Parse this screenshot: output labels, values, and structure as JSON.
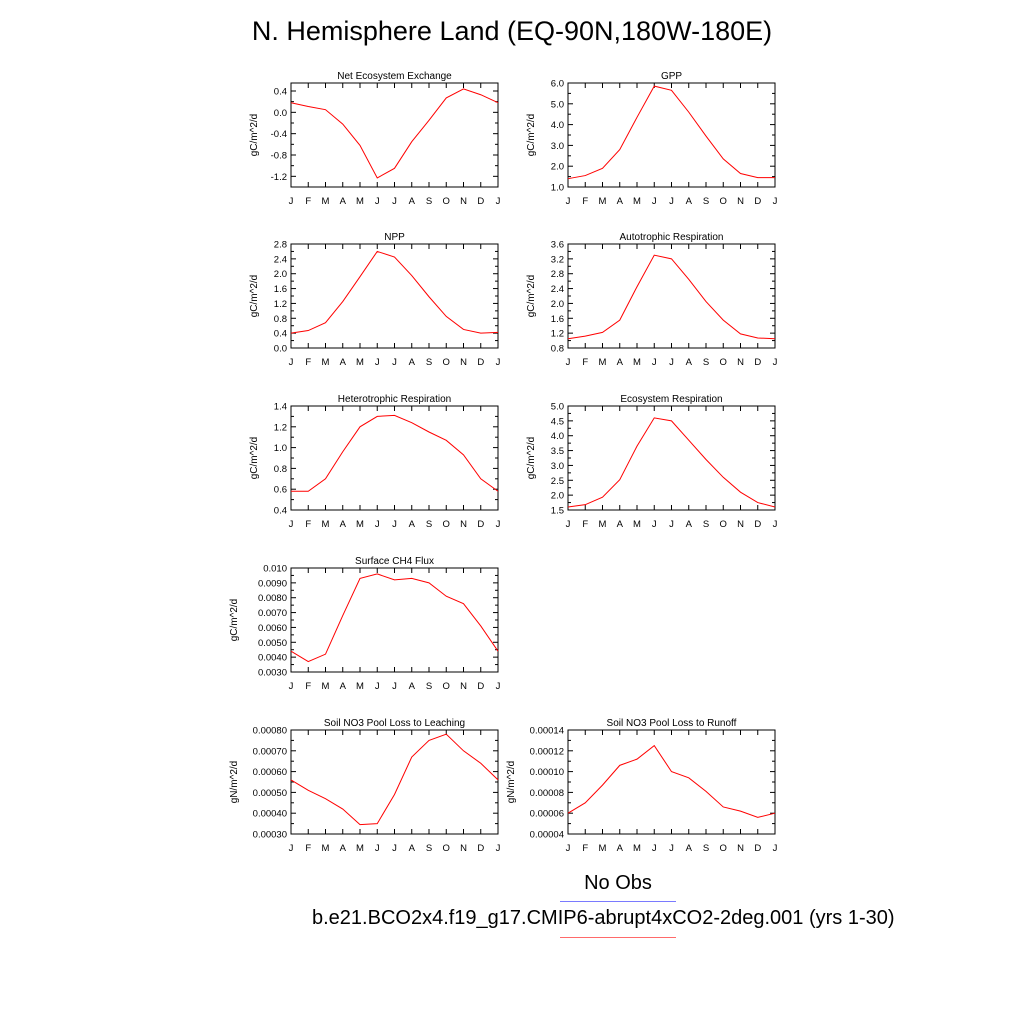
{
  "title": "N. Hemisphere Land (EQ-90N,180W-180E)",
  "legend": {
    "obs_label": "No Obs",
    "obs_color": "#7a7aff",
    "model_label": "b.e21.BCO2x4.f19_g17.CMIP6-abrupt4xCO2-2deg.001 (yrs 1-30)",
    "model_color": "#ff6a6a"
  },
  "line_color": "#ff0000",
  "chart_data": [
    {
      "type": "line",
      "title": "Net Ecosystem Exchange",
      "ylabel": "gC/m^2/d",
      "categories": [
        "J",
        "F",
        "M",
        "A",
        "M",
        "J",
        "J",
        "A",
        "S",
        "O",
        "N",
        "D",
        "J"
      ],
      "ylim": [
        -1.4,
        0.55
      ],
      "yticks": [
        0.4,
        0.0,
        -0.4,
        -0.8,
        -1.2
      ],
      "ytick_labels": [
        "0.4",
        "0.0",
        "-0.4",
        "-0.8",
        "-1.2"
      ],
      "series": [
        {
          "values": [
            0.18,
            0.11,
            0.05,
            -0.22,
            -0.62,
            -1.23,
            -1.05,
            -0.55,
            -0.15,
            0.27,
            0.44,
            0.33,
            0.18
          ]
        }
      ]
    },
    {
      "type": "line",
      "title": "GPP",
      "ylabel": "gC/m^2/d",
      "categories": [
        "J",
        "F",
        "M",
        "A",
        "M",
        "J",
        "J",
        "A",
        "S",
        "O",
        "N",
        "D",
        "J"
      ],
      "ylim": [
        1.0,
        6.0
      ],
      "yticks": [
        1.0,
        2.0,
        3.0,
        4.0,
        5.0,
        6.0
      ],
      "ytick_labels": [
        "1.0",
        "2.0",
        "3.0",
        "4.0",
        "5.0",
        "6.0"
      ],
      "series": [
        {
          "values": [
            1.4,
            1.55,
            1.9,
            2.8,
            4.35,
            5.85,
            5.65,
            4.6,
            3.45,
            2.35,
            1.65,
            1.45,
            1.45
          ]
        }
      ]
    },
    {
      "type": "line",
      "title": "NPP",
      "ylabel": "gC/m^2/d",
      "categories": [
        "J",
        "F",
        "M",
        "A",
        "M",
        "J",
        "J",
        "A",
        "S",
        "O",
        "N",
        "D",
        "J"
      ],
      "ylim": [
        0.0,
        2.8
      ],
      "yticks": [
        0.0,
        0.4,
        0.8,
        1.2,
        1.6,
        2.0,
        2.4,
        2.8
      ],
      "ytick_labels": [
        "0.0",
        "0.4",
        "0.8",
        "1.2",
        "1.6",
        "2.0",
        "2.4",
        "2.8"
      ],
      "series": [
        {
          "values": [
            0.4,
            0.47,
            0.68,
            1.25,
            1.92,
            2.6,
            2.45,
            1.95,
            1.38,
            0.85,
            0.5,
            0.4,
            0.42
          ]
        }
      ]
    },
    {
      "type": "line",
      "title": "Autotrophic Respiration",
      "ylabel": "gC/m^2/d",
      "categories": [
        "J",
        "F",
        "M",
        "A",
        "M",
        "J",
        "J",
        "A",
        "S",
        "O",
        "N",
        "D",
        "J"
      ],
      "ylim": [
        0.8,
        3.6
      ],
      "yticks": [
        0.8,
        1.2,
        1.6,
        2.0,
        2.4,
        2.8,
        3.2,
        3.6
      ],
      "ytick_labels": [
        "0.8",
        "1.2",
        "1.6",
        "2.0",
        "2.4",
        "2.8",
        "3.2",
        "3.6"
      ],
      "series": [
        {
          "values": [
            1.05,
            1.12,
            1.22,
            1.55,
            2.45,
            3.3,
            3.2,
            2.65,
            2.05,
            1.55,
            1.18,
            1.07,
            1.05
          ]
        }
      ]
    },
    {
      "type": "line",
      "title": "Heterotrophic Respiration",
      "ylabel": "gC/m^2/d",
      "categories": [
        "J",
        "F",
        "M",
        "A",
        "M",
        "J",
        "J",
        "A",
        "S",
        "O",
        "N",
        "D",
        "J"
      ],
      "ylim": [
        0.4,
        1.4
      ],
      "yticks": [
        0.4,
        0.6,
        0.8,
        1.0,
        1.2,
        1.4
      ],
      "ytick_labels": [
        "0.4",
        "0.6",
        "0.8",
        "1.0",
        "1.2",
        "1.4"
      ],
      "series": [
        {
          "values": [
            0.58,
            0.58,
            0.7,
            0.96,
            1.2,
            1.3,
            1.31,
            1.24,
            1.15,
            1.07,
            0.93,
            0.7,
            0.58
          ]
        }
      ]
    },
    {
      "type": "line",
      "title": "Ecosystem Respiration",
      "ylabel": "gC/m^2/d",
      "categories": [
        "J",
        "F",
        "M",
        "A",
        "M",
        "J",
        "J",
        "A",
        "S",
        "O",
        "N",
        "D",
        "J"
      ],
      "ylim": [
        1.5,
        5.0
      ],
      "yticks": [
        1.5,
        2.0,
        2.5,
        3.0,
        3.5,
        4.0,
        4.5,
        5.0
      ],
      "ytick_labels": [
        "1.5",
        "2.0",
        "2.5",
        "3.0",
        "3.5",
        "4.0",
        "4.5",
        "5.0"
      ],
      "series": [
        {
          "values": [
            1.6,
            1.68,
            1.93,
            2.52,
            3.65,
            4.6,
            4.5,
            3.85,
            3.2,
            2.6,
            2.1,
            1.75,
            1.6
          ]
        }
      ]
    },
    {
      "type": "line",
      "title": "Surface CH4 Flux",
      "ylabel": "gC/m^2/d",
      "categories": [
        "J",
        "F",
        "M",
        "A",
        "M",
        "J",
        "J",
        "A",
        "S",
        "O",
        "N",
        "D",
        "J"
      ],
      "ylim": [
        0.003,
        0.01
      ],
      "yticks": [
        0.003,
        0.004,
        0.005,
        0.006,
        0.007,
        0.008,
        0.009,
        0.01
      ],
      "ytick_labels": [
        "0.0030",
        "0.0040",
        "0.0050",
        "0.0060",
        "0.0070",
        "0.0080",
        "0.0090",
        "0.010"
      ],
      "series": [
        {
          "values": [
            0.0044,
            0.0037,
            0.0042,
            0.0068,
            0.0093,
            0.0096,
            0.0092,
            0.0093,
            0.009,
            0.0081,
            0.0076,
            0.0061,
            0.0044
          ]
        }
      ]
    },
    {
      "type": "line",
      "title": "Soil NO3 Pool Loss to Leaching",
      "ylabel": "gN/m^2/d",
      "categories": [
        "J",
        "F",
        "M",
        "A",
        "M",
        "J",
        "J",
        "A",
        "S",
        "O",
        "N",
        "D",
        "J"
      ],
      "ylim": [
        0.0003,
        0.0008
      ],
      "yticks": [
        0.0003,
        0.0004,
        0.0005,
        0.0006,
        0.0007,
        0.0008
      ],
      "ytick_labels": [
        "0.00030",
        "0.00040",
        "0.00050",
        "0.00060",
        "0.00070",
        "0.00080"
      ],
      "series": [
        {
          "values": [
            0.00056,
            0.00051,
            0.00047,
            0.00042,
            0.000345,
            0.00035,
            0.00049,
            0.00067,
            0.00075,
            0.00078,
            0.0007,
            0.00064,
            0.00056
          ]
        }
      ]
    },
    {
      "type": "line",
      "title": "Soil NO3 Pool Loss to Runoff",
      "ylabel": "gN/m^2/d",
      "categories": [
        "J",
        "F",
        "M",
        "A",
        "M",
        "J",
        "J",
        "A",
        "S",
        "O",
        "N",
        "D",
        "J"
      ],
      "ylim": [
        4e-05,
        0.00014
      ],
      "yticks": [
        4e-05,
        6e-05,
        8e-05,
        0.0001,
        0.00012,
        0.00014
      ],
      "ytick_labels": [
        "0.00004",
        "0.00006",
        "0.00008",
        "0.00010",
        "0.00012",
        "0.00014"
      ],
      "series": [
        {
          "values": [
            6e-05,
            7e-05,
            8.7e-05,
            0.000106,
            0.000112,
            0.000125,
            0.0001,
            9.4e-05,
            8.1e-05,
            6.6e-05,
            6.2e-05,
            5.6e-05,
            6e-05
          ]
        }
      ]
    }
  ]
}
